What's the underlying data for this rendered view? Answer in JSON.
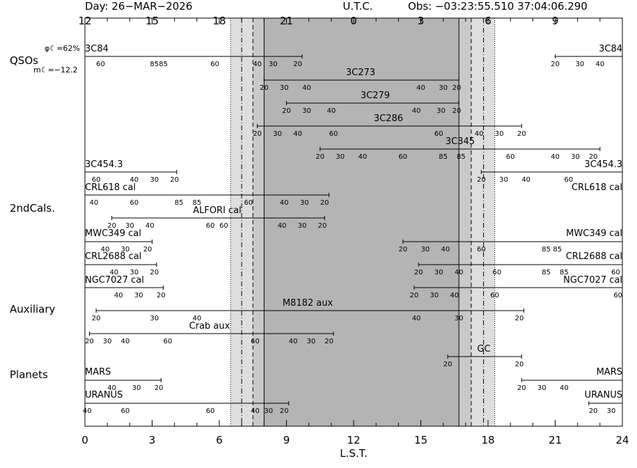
{
  "header": {
    "day": "Day: 26−MAR−2026",
    "utc": "U.T.C.",
    "obs": "Obs: −03:23:55.510 37:04:06.290"
  },
  "moon": {
    "phase": "φ☾=62%",
    "mag": "m☾=−12.2"
  },
  "colors": {
    "qso": "#1f1fd6",
    "cal": "#e01f1f",
    "aux": "#22d022",
    "planet": "#000000",
    "shade_light": "#dedede",
    "shade_dark": "#b4b4b4"
  },
  "chart_data": {
    "type": "timeline",
    "xlabel": "L.S.T.",
    "xlim": [
      0,
      24
    ],
    "lst_ticks": [
      "0",
      "3",
      "6",
      "9",
      "12",
      "15",
      "18",
      "21",
      "24"
    ],
    "utc_ticks": [
      "12",
      "15",
      "18",
      "21",
      "0",
      "3",
      "6",
      "9"
    ],
    "twilight_lst": {
      "dark_start": 8.0,
      "dark_end": 16.7,
      "inner_start": 7.5,
      "inner_end": 17.25,
      "outer_start": 7.0,
      "outer_end": 17.8,
      "astro_start": 6.5,
      "astro_end": 18.3
    },
    "groups": [
      {
        "label": "QSOs",
        "color_key": "qso"
      },
      {
        "label": "2ndCals.",
        "color_key": "cal"
      },
      {
        "label": "Auxiliary",
        "color_key": "aux"
      },
      {
        "label": "Planets",
        "color_key": "planet"
      }
    ],
    "sources": [
      {
        "name": "3C84",
        "name2": "3C84",
        "segments": [
          [
            0,
            9.7
          ],
          [
            21.0,
            24
          ]
        ],
        "labels": [
          [
            0.7,
            "60"
          ],
          [
            3.1,
            "85"
          ],
          [
            3.5,
            "85"
          ],
          [
            5.8,
            "60"
          ],
          [
            7.7,
            "40"
          ],
          [
            8.4,
            "30"
          ],
          [
            9.5,
            "20"
          ],
          [
            21.0,
            "20"
          ],
          [
            22.1,
            "30"
          ],
          [
            23.0,
            "40"
          ]
        ]
      },
      {
        "name": "3C273",
        "segments": [
          [
            8.0,
            16.7
          ]
        ],
        "labels": [
          [
            8.0,
            "20"
          ],
          [
            8.9,
            "30"
          ],
          [
            9.9,
            "40"
          ],
          [
            15.0,
            "40"
          ],
          [
            16.0,
            "30"
          ],
          [
            16.6,
            "20"
          ]
        ]
      },
      {
        "name": "3C279",
        "segments": [
          [
            9.0,
            16.7
          ]
        ],
        "labels": [
          [
            9.0,
            "20"
          ],
          [
            9.9,
            "30"
          ],
          [
            11.0,
            "40"
          ],
          [
            14.8,
            "40"
          ],
          [
            15.9,
            "30"
          ],
          [
            16.6,
            "20"
          ]
        ]
      },
      {
        "name": "3C286",
        "segments": [
          [
            7.7,
            19.5
          ]
        ],
        "labels": [
          [
            7.7,
            "20"
          ],
          [
            8.6,
            "30"
          ],
          [
            9.5,
            "40"
          ],
          [
            11.1,
            "60"
          ],
          [
            15.8,
            "60"
          ],
          [
            17.6,
            "40"
          ],
          [
            18.5,
            "30"
          ],
          [
            19.5,
            "20"
          ]
        ]
      },
      {
        "name": "3C345",
        "segments": [
          [
            10.5,
            23.0
          ]
        ],
        "labels": [
          [
            10.5,
            "20"
          ],
          [
            11.4,
            "30"
          ],
          [
            12.4,
            "40"
          ],
          [
            14.2,
            "60"
          ],
          [
            16.0,
            "85"
          ],
          [
            16.8,
            "85"
          ],
          [
            19.0,
            "60"
          ],
          [
            21.0,
            "40"
          ],
          [
            21.9,
            "30"
          ],
          [
            22.7,
            "20"
          ]
        ]
      },
      {
        "name": "3C454.3",
        "name2": "3C454.3",
        "segments": [
          [
            0,
            4.1
          ],
          [
            17.7,
            24
          ]
        ],
        "labels": [
          [
            0.5,
            "60"
          ],
          [
            2.2,
            "40"
          ],
          [
            3.1,
            "30"
          ],
          [
            4.0,
            "20"
          ],
          [
            17.7,
            "20"
          ],
          [
            18.7,
            "30"
          ],
          [
            19.7,
            "40"
          ],
          [
            21.6,
            "60"
          ]
        ]
      },
      {
        "name": "CRL618 cal",
        "name2": "CRL618 cal",
        "segments": [
          [
            0,
            10.9
          ]
        ],
        "labels": [
          [
            0.4,
            "40"
          ],
          [
            2.2,
            "60"
          ],
          [
            4.2,
            "85"
          ],
          [
            5.0,
            "85"
          ],
          [
            7.3,
            "60"
          ],
          [
            8.9,
            "40"
          ],
          [
            9.8,
            "30"
          ],
          [
            10.7,
            "20"
          ]
        ]
      },
      {
        "name": "ALFORI cal",
        "segments": [
          [
            1.2,
            10.7
          ]
        ],
        "labels": [
          [
            1.2,
            "20"
          ],
          [
            2.0,
            "30"
          ],
          [
            2.9,
            "40"
          ],
          [
            5.6,
            "60"
          ],
          [
            6.2,
            "60"
          ],
          [
            8.8,
            "40"
          ],
          [
            9.7,
            "30"
          ],
          [
            10.6,
            "20"
          ]
        ]
      },
      {
        "name": "MWC349 cal",
        "name2": "MWC349 cal",
        "segments": [
          [
            0,
            3.0
          ],
          [
            14.2,
            24
          ]
        ],
        "labels": [
          [
            0.9,
            "40"
          ],
          [
            1.8,
            "30"
          ],
          [
            2.8,
            "20"
          ],
          [
            14.2,
            "20"
          ],
          [
            15.2,
            "30"
          ],
          [
            16.1,
            "40"
          ],
          [
            17.7,
            "60"
          ],
          [
            20.6,
            "85"
          ],
          [
            21.1,
            "85"
          ]
        ]
      },
      {
        "name": "CRL2688 cal",
        "name2": "CRL2688 cal",
        "segments": [
          [
            0,
            3.2
          ],
          [
            14.9,
            24
          ]
        ],
        "labels": [
          [
            1.3,
            "40"
          ],
          [
            2.2,
            "30"
          ],
          [
            3.1,
            "20"
          ],
          [
            14.9,
            "20"
          ],
          [
            15.8,
            "30"
          ],
          [
            16.7,
            "40"
          ],
          [
            18.4,
            "60"
          ],
          [
            20.6,
            "85"
          ],
          [
            21.4,
            "85"
          ],
          [
            23.7,
            "60"
          ]
        ]
      },
      {
        "name": "NGC7027 cal",
        "name2": "NGC7027 cal",
        "segments": [
          [
            0,
            3.5
          ],
          [
            14.7,
            24
          ]
        ],
        "labels": [
          [
            1.5,
            "40"
          ],
          [
            2.4,
            "30"
          ],
          [
            3.4,
            "20"
          ],
          [
            14.7,
            "20"
          ],
          [
            15.6,
            "30"
          ],
          [
            16.5,
            "40"
          ],
          [
            18.3,
            "60"
          ],
          [
            23.8,
            "60"
          ]
        ]
      },
      {
        "name": "M8182 aux",
        "segments": [
          [
            0.5,
            19.6
          ]
        ],
        "labels": [
          [
            0.5,
            "20"
          ],
          [
            3.1,
            "30"
          ],
          [
            5.0,
            "40"
          ],
          [
            14.8,
            "40"
          ],
          [
            16.7,
            "30"
          ],
          [
            19.4,
            "20"
          ]
        ]
      },
      {
        "name": "Crab aux",
        "segments": [
          [
            0.2,
            11.1
          ]
        ],
        "labels": [
          [
            0.2,
            "20"
          ],
          [
            1.0,
            "30"
          ],
          [
            1.8,
            "40"
          ],
          [
            3.7,
            "60"
          ],
          [
            7.6,
            "60"
          ],
          [
            9.3,
            "40"
          ],
          [
            10.1,
            "30"
          ],
          [
            10.9,
            "20"
          ]
        ]
      },
      {
        "name": "GC",
        "segments": [
          [
            16.2,
            19.5
          ]
        ],
        "labels": [
          [
            16.2,
            "20"
          ],
          [
            19.4,
            "20"
          ]
        ]
      },
      {
        "name": "MARS",
        "name2": "MARS",
        "segments": [
          [
            0,
            3.4
          ],
          [
            19.5,
            24
          ]
        ],
        "labels": [
          [
            1.2,
            "40"
          ],
          [
            2.3,
            "30"
          ],
          [
            3.3,
            "20"
          ],
          [
            19.5,
            "20"
          ],
          [
            20.4,
            "30"
          ],
          [
            21.4,
            "40"
          ]
        ]
      },
      {
        "name": "URANUS",
        "name2": "URANUS",
        "segments": [
          [
            0,
            9.1
          ],
          [
            22.5,
            24
          ]
        ],
        "labels": [
          [
            0.1,
            "40"
          ],
          [
            1.8,
            "60"
          ],
          [
            5.6,
            "60"
          ],
          [
            7.6,
            "40"
          ],
          [
            8.2,
            "30"
          ],
          [
            8.9,
            "20"
          ],
          [
            22.7,
            "20"
          ],
          [
            23.5,
            "30"
          ]
        ]
      }
    ]
  }
}
